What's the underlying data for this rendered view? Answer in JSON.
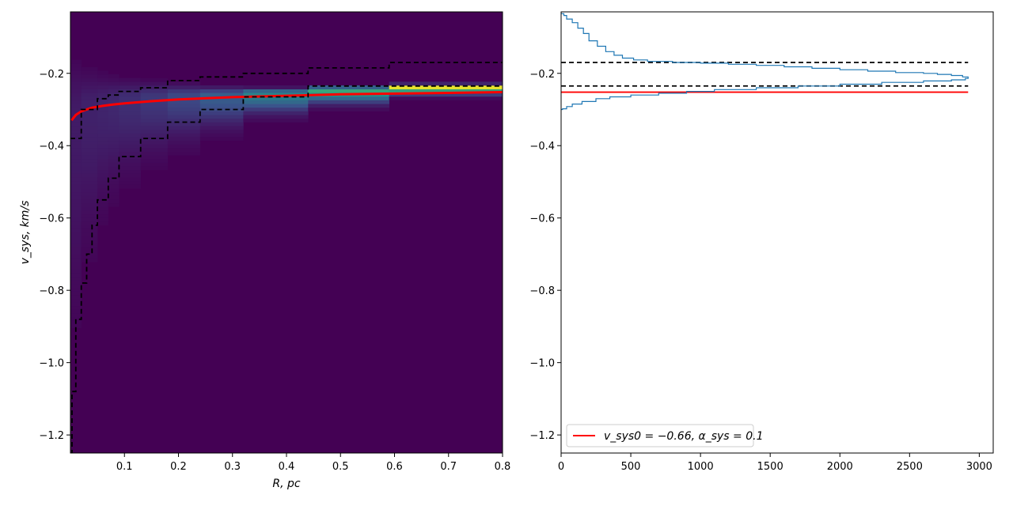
{
  "chart_data": [
    {
      "type": "heatmap",
      "xlabel": "R, pc",
      "ylabel": "v_sys, km/s",
      "xlim": [
        0.0,
        0.8
      ],
      "ylim": [
        -1.25,
        -0.03
      ],
      "xticks": [
        "0.1",
        "0.2",
        "0.3",
        "0.4",
        "0.5",
        "0.6",
        "0.7",
        "0.8"
      ],
      "yticks": [
        "−0.2",
        "−0.4",
        "−0.6",
        "−0.8",
        "−1.0",
        "−1.2"
      ],
      "colormap": "viridis",
      "bin_edges_r": [
        0.0,
        0.02,
        0.05,
        0.07,
        0.09,
        0.13,
        0.18,
        0.24,
        0.32,
        0.44,
        0.59,
        0.8
      ],
      "band_mean_v": [
        -0.31,
        -0.29,
        -0.28,
        -0.275,
        -0.27,
        -0.265,
        -0.262,
        -0.26,
        -0.255,
        -0.245,
        -0.235
      ],
      "band_sigma_v": [
        0.5,
        0.34,
        0.26,
        0.22,
        0.18,
        0.14,
        0.11,
        0.08,
        0.05,
        0.035,
        0.02
      ],
      "band_peak": [
        0.08,
        0.1,
        0.11,
        0.12,
        0.14,
        0.17,
        0.22,
        0.3,
        0.45,
        0.6,
        1.0
      ],
      "series": [
        {
          "name": "model",
          "color": "#ff0000",
          "r": [
            0.002,
            0.01,
            0.02,
            0.04,
            0.06,
            0.08,
            0.1,
            0.15,
            0.2,
            0.3,
            0.4,
            0.5,
            0.6,
            0.7,
            0.8
          ],
          "v": [
            -0.33,
            -0.315,
            -0.305,
            -0.295,
            -0.29,
            -0.286,
            -0.283,
            -0.277,
            -0.272,
            -0.266,
            -0.262,
            -0.258,
            -0.256,
            -0.254,
            -0.252
          ]
        },
        {
          "name": "upper",
          "color": "#000000",
          "style": "dashed",
          "r": [
            0.0,
            0.02,
            0.05,
            0.07,
            0.09,
            0.13,
            0.18,
            0.24,
            0.32,
            0.44,
            0.59,
            0.8
          ],
          "v": [
            -0.38,
            -0.3,
            -0.27,
            -0.26,
            -0.25,
            -0.24,
            -0.22,
            -0.21,
            -0.2,
            -0.185,
            -0.17,
            -0.17
          ]
        },
        {
          "name": "lower",
          "color": "#000000",
          "style": "dashed",
          "r": [
            0.0,
            0.003,
            0.01,
            0.02,
            0.03,
            0.04,
            0.05,
            0.07,
            0.09,
            0.13,
            0.18,
            0.24,
            0.32,
            0.44,
            0.59,
            0.8
          ],
          "v": [
            -1.25,
            -1.08,
            -0.88,
            -0.78,
            -0.7,
            -0.62,
            -0.55,
            -0.49,
            -0.43,
            -0.38,
            -0.335,
            -0.3,
            -0.265,
            -0.235,
            -0.235,
            -0.235
          ]
        }
      ]
    },
    {
      "type": "line",
      "xlim": [
        0,
        3100
      ],
      "ylim": [
        -1.25,
        -0.03
      ],
      "xticks": [
        "0",
        "500",
        "1000",
        "1500",
        "2000",
        "2500",
        "3000"
      ],
      "yticks": [
        "−0.2",
        "−0.4",
        "−0.6",
        "−0.8",
        "−1.0",
        "−1.2"
      ],
      "legend": {
        "location": "lower left",
        "entries": [
          {
            "label": "v_sys0 = −0.66, α_sys = 0.1",
            "color": "#ff0000"
          }
        ]
      },
      "hlines": [
        {
          "y": -0.17,
          "color": "#000000",
          "style": "dashed"
        },
        {
          "y": -0.235,
          "color": "#000000",
          "style": "dashed"
        },
        {
          "y": -0.252,
          "color": "#ff0000",
          "style": "solid"
        }
      ],
      "series": [
        {
          "name": "histogram",
          "color": "#1f77b4",
          "style": "steps",
          "x": [
            0,
            20,
            40,
            80,
            120,
            160,
            200,
            260,
            320,
            380,
            440,
            520,
            620,
            800,
            1000,
            1200,
            1400,
            1600,
            1800,
            2000,
            2200,
            2400,
            2600,
            2700,
            2800,
            2880,
            2920,
            2900,
            2800,
            2600,
            2300,
            2000,
            1700,
            1400,
            1100,
            900,
            700,
            500,
            350,
            250,
            150,
            80,
            40,
            10,
            0
          ],
          "y": [
            -0.03,
            -0.035,
            -0.04,
            -0.05,
            -0.06,
            -0.075,
            -0.09,
            -0.11,
            -0.125,
            -0.14,
            -0.15,
            -0.158,
            -0.163,
            -0.167,
            -0.17,
            -0.172,
            -0.175,
            -0.178,
            -0.182,
            -0.186,
            -0.19,
            -0.194,
            -0.198,
            -0.2,
            -0.203,
            -0.206,
            -0.21,
            -0.214,
            -0.218,
            -0.221,
            -0.225,
            -0.23,
            -0.235,
            -0.24,
            -0.245,
            -0.25,
            -0.255,
            -0.26,
            -0.265,
            -0.27,
            -0.278,
            -0.285,
            -0.292,
            -0.298,
            -0.3
          ]
        }
      ]
    }
  ]
}
